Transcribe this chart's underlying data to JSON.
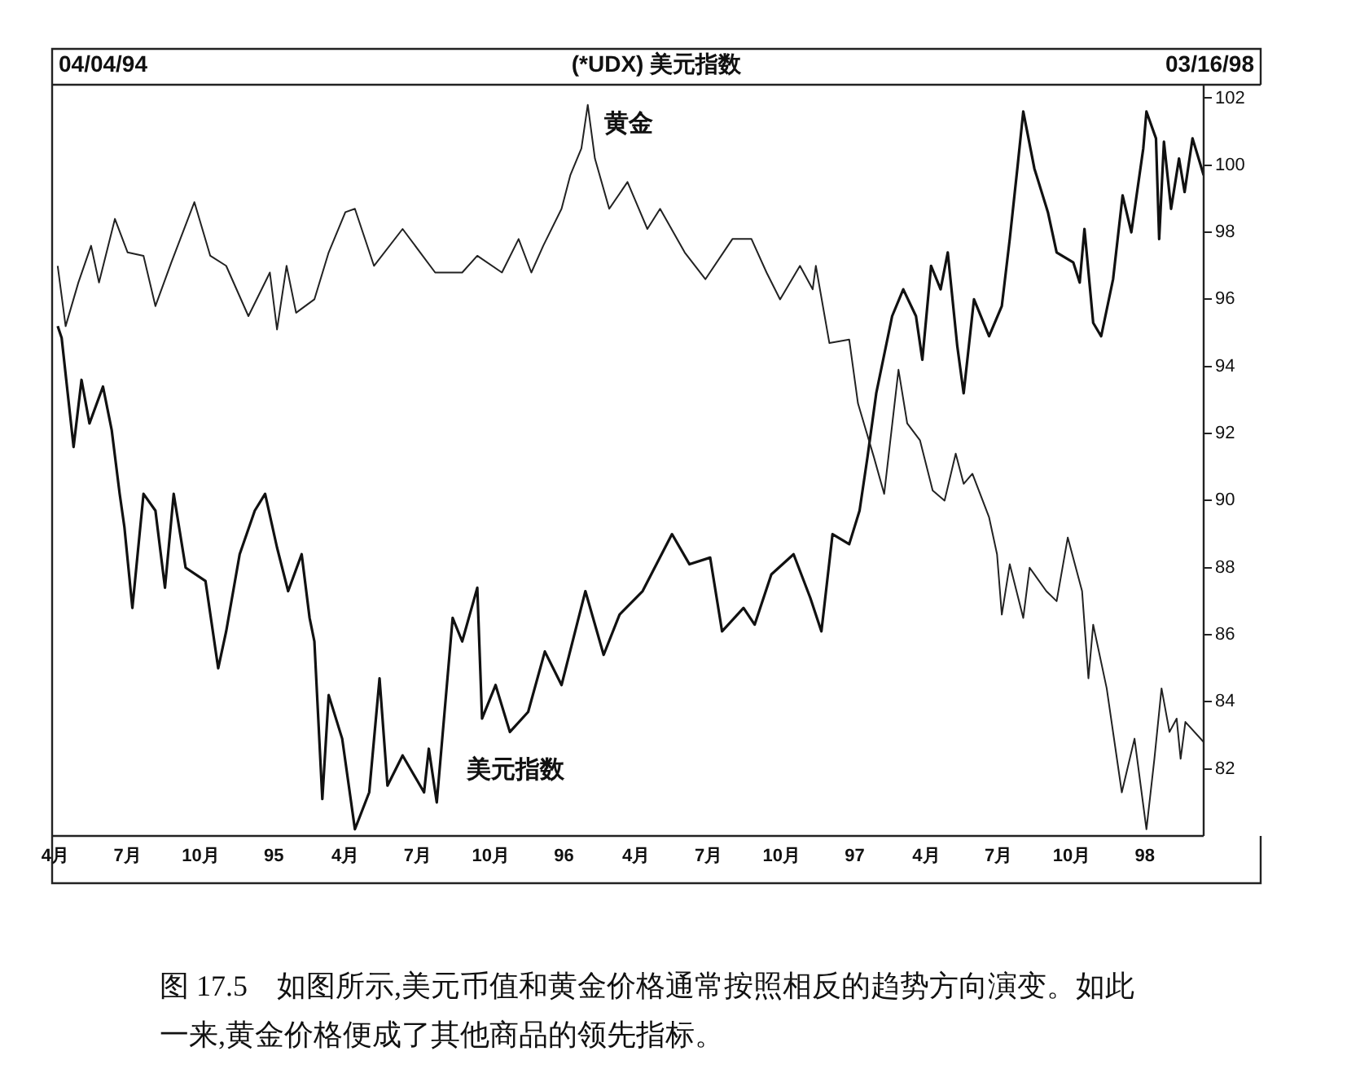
{
  "chart_data": {
    "type": "line",
    "title": "(*UDX) 美元指数",
    "annotations": [
      "04/04/94",
      "03/16/98",
      "图 17.5　如图所示,美元币值和黄金价格通常按照相反的趋势方向演变。如此一来,黄金价格便成了其他商品的领先指标。"
    ],
    "xlim": [
      "1994-03-28",
      "1998-03-16"
    ],
    "xticks": [
      {
        "value": "1994-04-01",
        "label": "4月"
      },
      {
        "value": "1994-07-01",
        "label": "7月"
      },
      {
        "value": "1994-10-01",
        "label": "10月"
      },
      {
        "value": "1995-01-01",
        "label": "95"
      },
      {
        "value": "1995-04-01",
        "label": "4月"
      },
      {
        "value": "1995-07-01",
        "label": "7月"
      },
      {
        "value": "1995-10-01",
        "label": "10月"
      },
      {
        "value": "1996-01-01",
        "label": "96"
      },
      {
        "value": "1996-04-01",
        "label": "4月"
      },
      {
        "value": "1996-07-01",
        "label": "7月"
      },
      {
        "value": "1996-10-01",
        "label": "10月"
      },
      {
        "value": "1997-01-01",
        "label": "97"
      },
      {
        "value": "1997-04-01",
        "label": "4月"
      },
      {
        "value": "1997-07-01",
        "label": "7月"
      },
      {
        "value": "1997-10-01",
        "label": "10月"
      },
      {
        "value": "1998-01-01",
        "label": "98"
      }
    ],
    "ylim": [
      80,
      102.4
    ],
    "yticks": [
      82,
      84,
      86,
      88,
      90,
      92,
      94,
      96,
      98,
      100,
      102
    ],
    "grid": false,
    "legend": false,
    "marker": "none",
    "line_style": "solid",
    "series": [
      {
        "name": "黄金",
        "color": "#222222",
        "x": [
          "1994-04-04",
          "1994-04-14",
          "1994-04-30",
          "1994-05-16",
          "1994-05-26",
          "1994-06-15",
          "1994-07-01",
          "1994-07-21",
          "1994-08-05",
          "1994-08-25",
          "1994-09-23",
          "1994-10-13",
          "1994-11-02",
          "1994-11-30",
          "1994-12-27",
          "1995-01-05",
          "1995-01-17",
          "1995-01-29",
          "1995-02-21",
          "1995-03-11",
          "1995-04-01",
          "1995-04-13",
          "1995-05-07",
          "1995-06-12",
          "1995-07-23",
          "1995-08-26",
          "1995-09-14",
          "1995-10-15",
          "1995-11-05",
          "1995-11-21",
          "1995-12-06",
          "1995-12-29",
          "1996-01-09",
          "1996-01-23",
          "1996-01-31",
          "1996-02-09",
          "1996-02-27",
          "1996-03-21",
          "1996-04-15",
          "1996-05-01",
          "1996-06-01",
          "1996-06-27",
          "1996-07-31",
          "1996-08-24",
          "1996-09-12",
          "1996-09-29",
          "1996-10-24",
          "1996-11-09",
          "1996-11-13",
          "1996-11-30",
          "1996-12-25",
          "1997-01-05",
          "1997-01-15",
          "1997-01-25",
          "1997-02-07",
          "1997-02-25",
          "1997-03-08",
          "1997-03-24",
          "1997-04-09",
          "1997-04-24",
          "1997-05-08",
          "1997-05-18",
          "1997-05-29",
          "1997-06-19",
          "1997-06-29",
          "1997-07-05",
          "1997-07-15",
          "1997-08-01",
          "1997-08-09",
          "1997-08-30",
          "1997-09-12",
          "1997-09-26",
          "1997-10-14",
          "1997-10-22",
          "1997-10-28",
          "1997-11-14",
          "1997-12-03",
          "1997-12-19",
          "1998-01-03",
          "1998-01-13",
          "1998-01-22",
          "1998-02-01",
          "1998-02-10",
          "1998-02-15",
          "1998-02-21",
          "1998-03-16"
        ],
        "values": [
          97.0,
          95.2,
          96.5,
          97.6,
          96.5,
          98.4,
          97.4,
          97.3,
          95.8,
          97.1,
          98.9,
          97.3,
          97.0,
          95.5,
          96.8,
          95.1,
          97.0,
          95.6,
          96.0,
          97.4,
          98.6,
          98.7,
          97.0,
          98.1,
          96.8,
          96.8,
          97.3,
          96.8,
          97.8,
          96.8,
          97.6,
          98.7,
          99.7,
          100.5,
          101.8,
          100.2,
          98.7,
          99.5,
          98.1,
          98.7,
          97.4,
          96.6,
          97.8,
          97.8,
          96.8,
          96.0,
          97.0,
          96.3,
          97.0,
          94.7,
          94.8,
          92.9,
          92.1,
          91.3,
          90.2,
          93.9,
          92.3,
          91.8,
          90.3,
          90.0,
          91.4,
          90.5,
          90.8,
          89.5,
          88.4,
          86.6,
          88.1,
          86.5,
          88.0,
          87.3,
          87.0,
          88.9,
          87.3,
          84.7,
          86.3,
          84.4,
          81.3,
          82.9,
          80.2,
          82.3,
          84.4,
          83.1,
          83.5,
          82.3,
          83.4,
          82.8
        ]
      },
      {
        "name": "美元指数",
        "color": "#111111",
        "x": [
          "1994-04-04",
          "1994-04-09",
          "1994-04-24",
          "1994-05-04",
          "1994-05-14",
          "1994-05-31",
          "1994-06-11",
          "1994-06-21",
          "1994-06-27",
          "1994-07-07",
          "1994-07-21",
          "1994-08-05",
          "1994-08-17",
          "1994-08-28",
          "1994-09-12",
          "1994-10-07",
          "1994-10-23",
          "1994-11-02",
          "1994-11-19",
          "1994-12-08",
          "1994-12-21",
          "1995-01-05",
          "1995-01-19",
          "1995-02-05",
          "1995-02-15",
          "1995-02-21",
          "1995-03-03",
          "1995-03-11",
          "1995-03-28",
          "1995-04-13",
          "1995-05-01",
          "1995-05-14",
          "1995-05-24",
          "1995-06-12",
          "1995-07-09",
          "1995-07-15",
          "1995-07-25",
          "1995-08-14",
          "1995-08-26",
          "1995-09-14",
          "1995-09-20",
          "1995-10-07",
          "1995-10-25",
          "1995-11-17",
          "1995-12-08",
          "1995-12-29",
          "1996-01-28",
          "1996-02-20",
          "1996-03-11",
          "1996-04-09",
          "1996-05-16",
          "1996-06-07",
          "1996-07-03",
          "1996-07-18",
          "1996-08-14",
          "1996-08-28",
          "1996-09-18",
          "1996-10-16",
          "1996-11-06",
          "1996-11-20",
          "1996-12-04",
          "1996-12-25",
          "1997-01-07",
          "1997-01-17",
          "1997-01-28",
          "1997-02-17",
          "1997-03-03",
          "1997-03-19",
          "1997-03-27",
          "1997-04-07",
          "1997-04-19",
          "1997-04-28",
          "1997-05-10",
          "1997-05-18",
          "1997-05-31",
          "1997-06-19",
          "1997-07-05",
          "1997-07-15",
          "1997-07-25",
          "1997-08-01",
          "1997-08-15",
          "1997-09-01",
          "1997-09-12",
          "1997-10-03",
          "1997-10-11",
          "1997-10-17",
          "1997-10-28",
          "1997-11-07",
          "1997-11-22",
          "1997-12-04",
          "1997-12-15",
          "1997-12-30",
          "1998-01-03",
          "1998-01-15",
          "1998-01-19",
          "1998-01-25",
          "1998-02-03",
          "1998-02-13",
          "1998-02-20",
          "1998-03-02",
          "1998-03-16"
        ],
        "values": [
          95.2,
          94.85,
          91.6,
          93.6,
          92.3,
          93.4,
          92.1,
          90.2,
          89.2,
          86.8,
          90.2,
          89.7,
          87.4,
          90.2,
          88.0,
          87.6,
          85.0,
          86.1,
          88.4,
          89.7,
          90.2,
          88.6,
          87.3,
          88.4,
          86.5,
          85.8,
          81.1,
          84.2,
          82.9,
          80.2,
          81.3,
          84.7,
          81.5,
          82.4,
          81.3,
          82.6,
          81.0,
          86.5,
          85.8,
          87.4,
          83.5,
          84.5,
          83.1,
          83.7,
          85.5,
          84.5,
          87.3,
          85.4,
          86.6,
          87.3,
          89.0,
          88.1,
          88.3,
          86.1,
          86.8,
          86.3,
          87.8,
          88.4,
          87.1,
          86.1,
          89.0,
          88.7,
          89.7,
          91.3,
          93.2,
          95.5,
          96.3,
          95.5,
          94.2,
          97.0,
          96.3,
          97.4,
          94.6,
          93.2,
          96.0,
          94.9,
          95.8,
          97.8,
          100.0,
          101.6,
          99.9,
          98.6,
          97.4,
          97.1,
          96.5,
          98.1,
          95.3,
          94.9,
          96.6,
          99.1,
          98.0,
          100.5,
          101.6,
          100.8,
          97.8,
          100.7,
          98.7,
          100.2,
          99.2,
          100.8,
          99.7
        ]
      }
    ]
  }
}
